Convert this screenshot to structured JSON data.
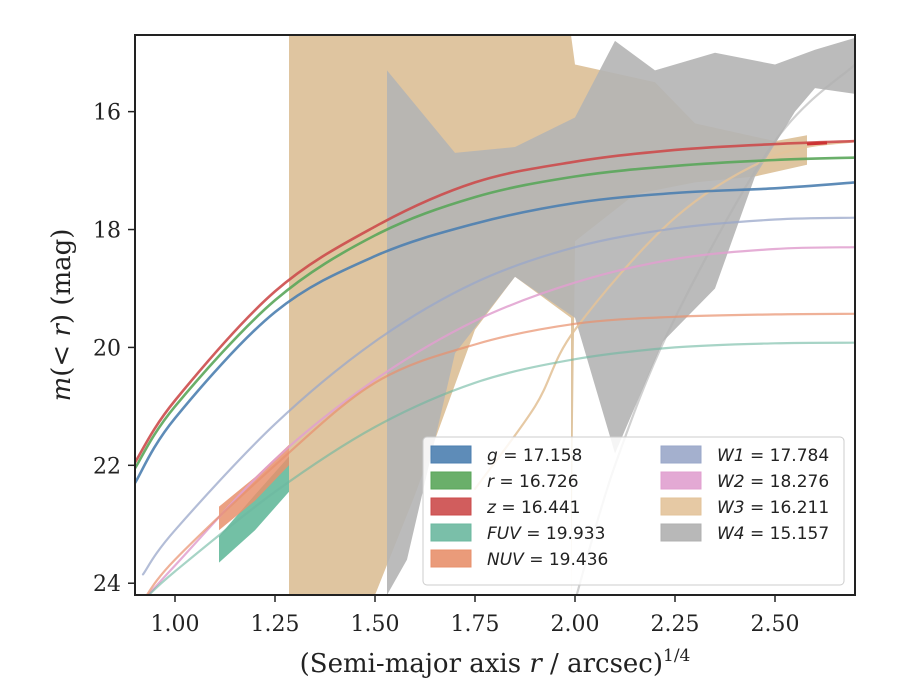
{
  "chart_data": {
    "type": "line",
    "xlabel_main": "(Semi-major axis ",
    "xlabel_r": "r",
    "xlabel_unit": " / arcsec)",
    "xlabel_exp": "1/4",
    "ylabel_m": "m",
    "ylabel_rest": "(< ",
    "ylabel_r": "r",
    "ylabel_close": ") (mag)",
    "xlim": [
      0.9,
      2.7
    ],
    "ylim": [
      24.2,
      14.7
    ],
    "y_inverted": true,
    "grid": false,
    "legend_position": "lower-right",
    "x_ticks": [
      1.0,
      1.25,
      1.5,
      1.75,
      2.0,
      2.25,
      2.5
    ],
    "x_tick_labels": [
      "1.00",
      "1.25",
      "1.50",
      "1.75",
      "2.00",
      "2.25",
      "2.50"
    ],
    "y_ticks": [
      16,
      18,
      20,
      22,
      24
    ],
    "y_tick_labels": [
      "16",
      "18",
      "20",
      "22",
      "24"
    ],
    "series": [
      {
        "name": "g",
        "label_value": "17.158",
        "color": "#4c7fb0",
        "x_start": 0.9,
        "x_end": 2.53,
        "asymptote": 17.1,
        "x_far": 2.7,
        "band_end": 2.53,
        "points": [
          [
            0.9,
            22.3
          ],
          [
            1.0,
            21.2
          ],
          [
            1.25,
            19.4
          ],
          [
            1.5,
            18.45
          ],
          [
            1.75,
            17.9
          ],
          [
            2.0,
            17.55
          ],
          [
            2.25,
            17.38
          ],
          [
            2.5,
            17.3
          ],
          [
            2.7,
            17.2
          ]
        ]
      },
      {
        "name": "r",
        "label_value": "16.726",
        "color": "#5aa65a",
        "x_start": 0.9,
        "x_end": 2.7,
        "asymptote": 16.7,
        "points": [
          [
            0.9,
            22.05
          ],
          [
            1.0,
            21.0
          ],
          [
            1.25,
            19.2
          ],
          [
            1.5,
            18.1
          ],
          [
            1.75,
            17.45
          ],
          [
            2.0,
            17.1
          ],
          [
            2.25,
            16.92
          ],
          [
            2.5,
            16.82
          ],
          [
            2.7,
            16.78
          ]
        ]
      },
      {
        "name": "z",
        "label_value": "16.441",
        "color": "#cc4b4b",
        "x_start": 0.9,
        "x_end": 2.7,
        "asymptote": 16.4,
        "points": [
          [
            0.9,
            21.95
          ],
          [
            1.0,
            20.9
          ],
          [
            1.25,
            19.05
          ],
          [
            1.5,
            17.95
          ],
          [
            1.75,
            17.2
          ],
          [
            2.0,
            16.85
          ],
          [
            2.25,
            16.65
          ],
          [
            2.5,
            16.55
          ],
          [
            2.7,
            16.5
          ]
        ]
      },
      {
        "name": "FUV",
        "label_value": "19.933",
        "color": "#6cb8a0",
        "x_start": 0.92,
        "x_end": 2.7,
        "asymptote": 19.9,
        "points": [
          [
            0.92,
            24.3
          ],
          [
            1.0,
            23.8
          ],
          [
            1.25,
            22.45
          ],
          [
            1.5,
            21.35
          ],
          [
            1.75,
            20.6
          ],
          [
            2.0,
            20.2
          ],
          [
            2.25,
            20.0
          ],
          [
            2.5,
            19.93
          ],
          [
            2.7,
            19.92
          ]
        ]
      },
      {
        "name": "NUV",
        "label_value": "19.436",
        "color": "#e8906c",
        "x_start": 0.92,
        "x_end": 2.7,
        "asymptote": 19.4,
        "points": [
          [
            0.92,
            24.3
          ],
          [
            1.0,
            23.6
          ],
          [
            1.25,
            22.0
          ],
          [
            1.5,
            20.6
          ],
          [
            1.75,
            19.95
          ],
          [
            2.0,
            19.6
          ],
          [
            2.25,
            19.48
          ],
          [
            2.5,
            19.44
          ],
          [
            2.7,
            19.43
          ]
        ]
      },
      {
        "name": "W1",
        "label_value": "17.784",
        "color": "#9aa7c9",
        "x_start": 0.92,
        "x_end": 2.7,
        "asymptote": 17.78,
        "points": [
          [
            0.92,
            23.85
          ],
          [
            1.0,
            23.1
          ],
          [
            1.25,
            21.3
          ],
          [
            1.5,
            19.9
          ],
          [
            1.75,
            18.9
          ],
          [
            2.0,
            18.3
          ],
          [
            2.25,
            17.98
          ],
          [
            2.5,
            17.83
          ],
          [
            2.7,
            17.8
          ]
        ]
      },
      {
        "name": "W2",
        "label_value": "18.276",
        "color": "#e0a0cf",
        "x_start": 0.92,
        "x_end": 2.7,
        "asymptote": 18.28,
        "points": [
          [
            0.92,
            24.3
          ],
          [
            1.0,
            23.7
          ],
          [
            1.25,
            21.9
          ],
          [
            1.5,
            20.55
          ],
          [
            1.75,
            19.55
          ],
          [
            2.0,
            18.9
          ],
          [
            2.25,
            18.5
          ],
          [
            2.5,
            18.33
          ],
          [
            2.7,
            18.3
          ]
        ]
      },
      {
        "name": "W3",
        "label_value": "16.211",
        "color": "#e3c39a",
        "x_start": 1.75,
        "x_end": 2.7,
        "asymptote": 16.2,
        "points": [
          [
            1.75,
            22.4
          ],
          [
            1.9,
            21.0
          ],
          [
            2.0,
            19.7
          ],
          [
            2.25,
            17.8
          ],
          [
            2.5,
            16.75
          ],
          [
            2.7,
            16.5
          ]
        ]
      },
      {
        "name": "W4",
        "label_value": "15.157",
        "color": "#b0b0b0",
        "x_start": 2.0,
        "x_end": 2.7,
        "asymptote": 15.15,
        "points": [
          [
            2.0,
            24.3
          ],
          [
            2.1,
            22.0
          ],
          [
            2.25,
            19.5
          ],
          [
            2.5,
            16.5
          ],
          [
            2.7,
            15.2
          ]
        ]
      }
    ],
    "bands": {
      "W3_fill": {
        "color": "#d9bb8f",
        "upper": [
          [
            1.285,
            14.7
          ],
          [
            1.34,
            14.7
          ],
          [
            1.99,
            14.7
          ],
          [
            2.0,
            15.2
          ],
          [
            2.2,
            15.5
          ],
          [
            2.3,
            16.2
          ],
          [
            2.5,
            16.5
          ],
          [
            2.58,
            16.4
          ],
          [
            2.58,
            16.9
          ],
          [
            2.45,
            17.1
          ],
          [
            2.3,
            17.2
          ],
          [
            2.15,
            17.4
          ],
          [
            2.0,
            18.2
          ],
          [
            1.99,
            24.2
          ]
        ],
        "lower": [
          [
            1.285,
            24.2
          ],
          [
            1.34,
            24.2
          ],
          [
            1.5,
            24.2
          ],
          [
            1.6,
            22.5
          ],
          [
            1.75,
            19.7
          ],
          [
            1.85,
            18.8
          ],
          [
            1.99,
            19.5
          ],
          [
            1.99,
            24.2
          ]
        ]
      },
      "W4_fill": {
        "color": "#b4b4b4",
        "upper": [
          [
            1.53,
            15.3
          ],
          [
            1.7,
            16.7
          ],
          [
            1.85,
            16.6
          ],
          [
            2.0,
            16.1
          ],
          [
            2.1,
            14.8
          ],
          [
            2.2,
            15.3
          ],
          [
            2.35,
            15.0
          ],
          [
            2.5,
            15.2
          ],
          [
            2.6,
            14.95
          ],
          [
            2.7,
            14.75
          ]
        ],
        "lower": [
          [
            1.53,
            24.2
          ],
          [
            1.58,
            23.6
          ],
          [
            1.7,
            20.1
          ],
          [
            1.85,
            18.8
          ],
          [
            2.0,
            19.5
          ],
          [
            2.1,
            21.8
          ],
          [
            2.22,
            19.9
          ],
          [
            2.35,
            19.0
          ],
          [
            2.45,
            17.1
          ],
          [
            2.55,
            16.0
          ],
          [
            2.6,
            15.6
          ],
          [
            2.7,
            15.7
          ]
        ]
      },
      "FUV_fill": {
        "color": "#5bb595",
        "upper": [
          [
            1.11,
            23.2
          ],
          [
            1.2,
            22.5
          ],
          [
            1.285,
            21.85
          ]
        ],
        "lower": [
          [
            1.11,
            23.65
          ],
          [
            1.2,
            23.1
          ],
          [
            1.285,
            22.45
          ]
        ]
      },
      "NUV_fill": {
        "color": "#e8906c",
        "upper": [
          [
            1.11,
            22.7
          ],
          [
            1.2,
            22.2
          ],
          [
            1.285,
            21.65
          ]
        ],
        "lower": [
          [
            1.11,
            23.1
          ],
          [
            1.2,
            22.6
          ],
          [
            1.285,
            22.0
          ]
        ]
      }
    },
    "legend": [
      {
        "name": "g",
        "value": "17.158",
        "color": "#4c7fb0"
      },
      {
        "name": "r",
        "value": "16.726",
        "color": "#5aa65a"
      },
      {
        "name": "z",
        "value": "16.441",
        "color": "#cc4b4b"
      },
      {
        "name": "FUV",
        "value": "19.933",
        "color": "#6cb8a0"
      },
      {
        "name": "NUV",
        "value": "19.436",
        "color": "#e8906c"
      },
      {
        "name": "W1",
        "value": "17.784",
        "color": "#9aa7c9"
      },
      {
        "name": "W2",
        "value": "18.276",
        "color": "#e0a0cf"
      },
      {
        "name": "W3",
        "value": "16.211",
        "color": "#e3c39a"
      },
      {
        "name": "W4",
        "value": "15.157",
        "color": "#b0b0b0"
      }
    ]
  }
}
